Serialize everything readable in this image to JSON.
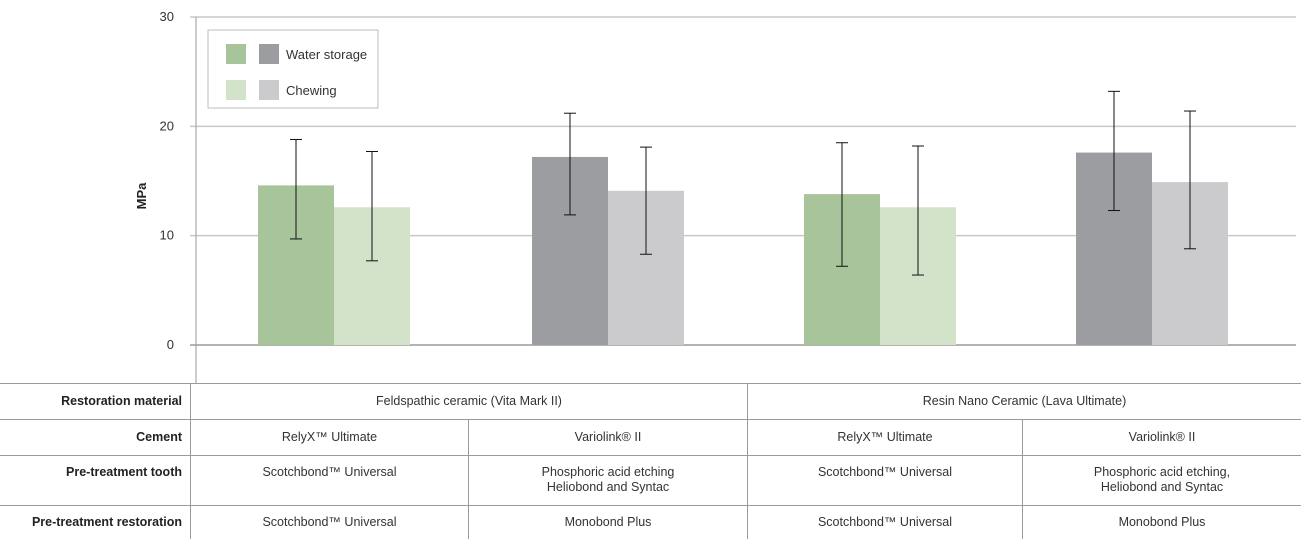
{
  "chart_data": {
    "type": "bar",
    "ylabel": "MPa",
    "ylim": [
      0,
      30
    ],
    "yticks": [
      0,
      10,
      20,
      30
    ],
    "groups": [
      {
        "label": "Feldspathic ceramic (Vita Mark II) / RelyX™ Ultimate",
        "palette": "green",
        "water_storage": {
          "value": 14.6,
          "err_low": 9.7,
          "err_high": 18.8
        },
        "chewing": {
          "value": 12.6,
          "err_low": 7.7,
          "err_high": 17.7
        }
      },
      {
        "label": "Feldspathic ceramic (Vita Mark II) / Variolink® II",
        "palette": "gray",
        "water_storage": {
          "value": 17.2,
          "err_low": 11.9,
          "err_high": 21.2
        },
        "chewing": {
          "value": 14.1,
          "err_low": 8.3,
          "err_high": 18.1
        }
      },
      {
        "label": "Resin Nano Ceramic (Lava Ultimate) / RelyX™ Ultimate",
        "palette": "green",
        "water_storage": {
          "value": 13.8,
          "err_low": 7.2,
          "err_high": 18.5
        },
        "chewing": {
          "value": 12.6,
          "err_low": 6.4,
          "err_high": 18.2
        }
      },
      {
        "label": "Resin Nano Ceramic (Lava Ultimate) / Variolink® II",
        "palette": "gray",
        "water_storage": {
          "value": 17.6,
          "err_low": 12.3,
          "err_high": 23.2
        },
        "chewing": {
          "value": 14.9,
          "err_low": 8.8,
          "err_high": 21.4
        }
      }
    ],
    "legend": {
      "position": "top-left",
      "entries": [
        {
          "label": "Water storage",
          "colors": [
            "#a8c49a",
            "#9c9da1"
          ]
        },
        {
          "label": "Chewing",
          "colors": [
            "#d3e3ca",
            "#cbcbce"
          ]
        }
      ]
    },
    "colors": {
      "green_water": "#a8c49a",
      "green_chewing": "#d3e3ca",
      "gray_water": "#9c9da1",
      "gray_chewing": "#cbcbce"
    },
    "grid": true
  },
  "table": {
    "restoration_material": {
      "label": "Restoration material",
      "values": [
        "Feldspathic ceramic (Vita Mark II)",
        "Resin Nano Ceramic (Lava Ultimate)"
      ]
    },
    "cement": {
      "label": "Cement",
      "values": [
        "RelyX™ Ultimate",
        "Variolink® II",
        "RelyX™ Ultimate",
        "Variolink® II"
      ]
    },
    "pretreatment_tooth": {
      "label": "Pre-treatment tooth",
      "values": [
        [
          "Scotchbond™ Universal"
        ],
        [
          "Phosphoric acid etching",
          "Heliobond and Syntac"
        ],
        [
          "Scotchbond™ Universal"
        ],
        [
          "Phosphoric acid etching,",
          "Heliobond and Syntac"
        ]
      ]
    },
    "pretreatment_restoration": {
      "label": "Pre-treatment restoration",
      "values": [
        "Scotchbond™ Universal",
        "Monobond Plus",
        "Scotchbond™ Universal",
        "Monobond Plus"
      ]
    }
  }
}
